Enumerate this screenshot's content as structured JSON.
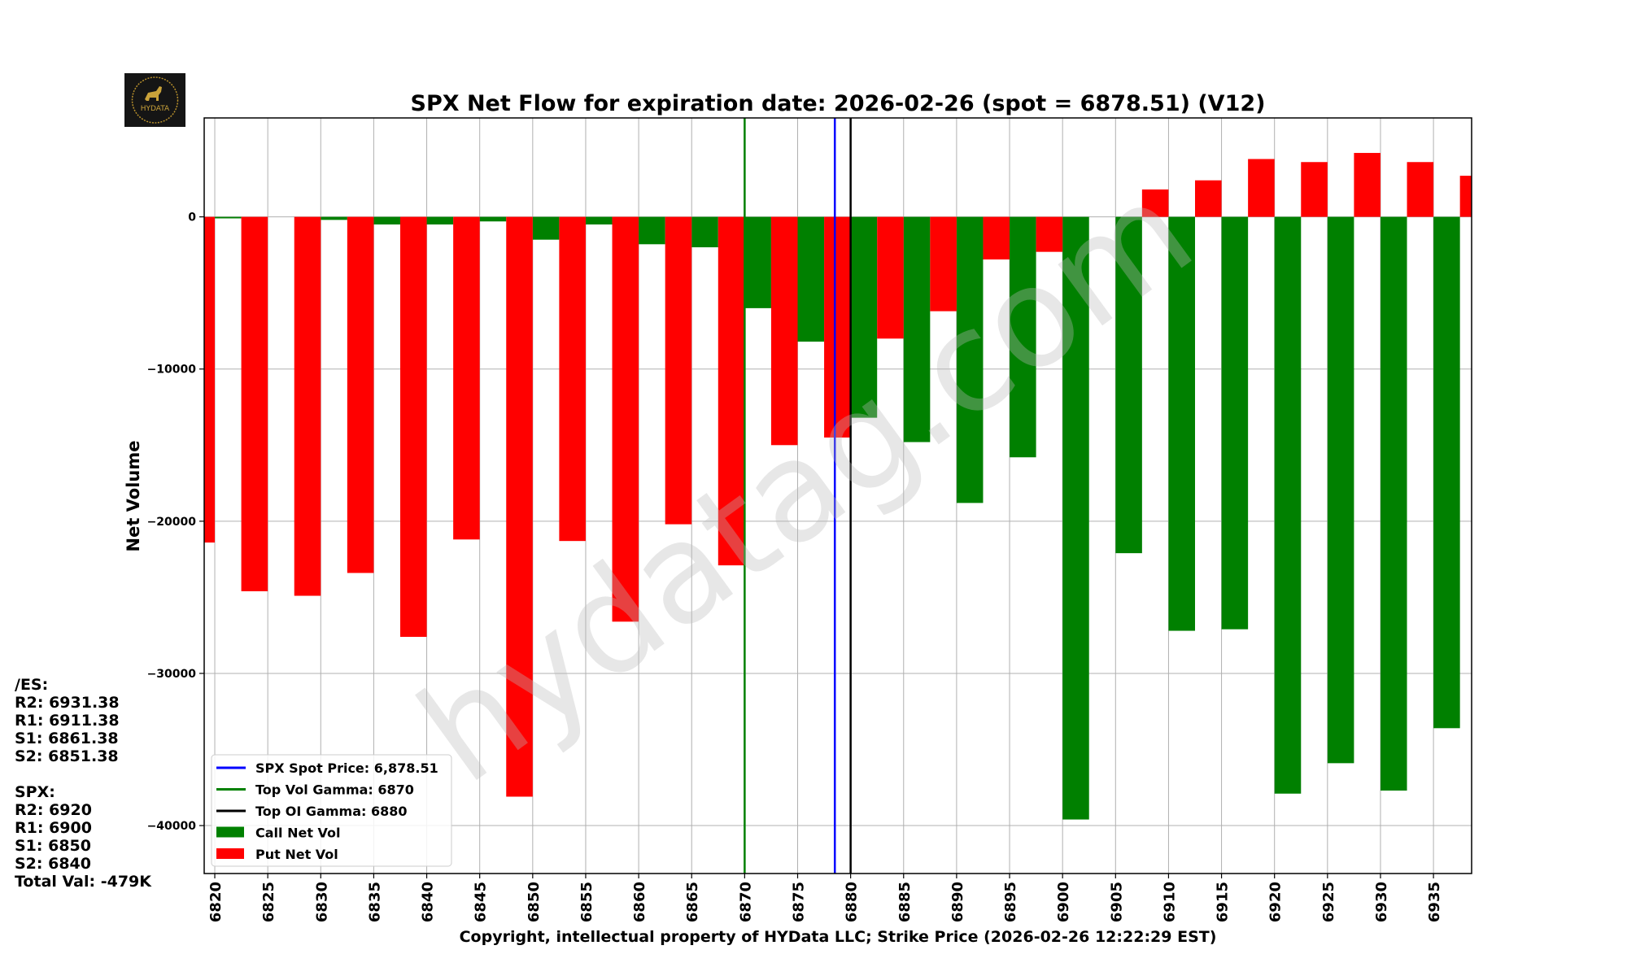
{
  "chart_data": {
    "type": "bar",
    "title": "SPX Net Flow for expiration date: 2026-02-26 (spot = 6878.51) (V12)",
    "xlabel": "Copyright, intellectual property of HYData LLC; Strike Price (2026-02-26 12:22:29 EST)",
    "ylabel": "Net Volume",
    "xlim": [
      6819,
      6938.6
    ],
    "ylim": [
      -43150,
      6500
    ],
    "grid": true,
    "legend_placement": "lower-left",
    "x_ticks": [
      6820,
      6825,
      6830,
      6835,
      6840,
      6845,
      6850,
      6855,
      6860,
      6865,
      6870,
      6875,
      6880,
      6885,
      6890,
      6895,
      6900,
      6905,
      6910,
      6915,
      6920,
      6925,
      6930,
      6935
    ],
    "y_ticks": [
      0,
      -10000,
      -20000,
      -30000,
      -40000
    ],
    "y_tick_labels": [
      "0",
      "−10000",
      "−20000",
      "−30000",
      "−40000"
    ],
    "strikes": [
      6820,
      6825,
      6830,
      6835,
      6840,
      6845,
      6850,
      6855,
      6860,
      6865,
      6870,
      6875,
      6880,
      6885,
      6890,
      6895,
      6900,
      6905,
      6910,
      6915,
      6920,
      6925,
      6930,
      6935,
      6940
    ],
    "series": [
      {
        "name": "Call Net Vol",
        "color": "#008000",
        "offset": "right",
        "values": [
          -100,
          0,
          -200,
          -500,
          -500,
          -300,
          -1500,
          -500,
          -1800,
          -2000,
          -6000,
          -8200,
          -13200,
          -14800,
          -18800,
          -15800,
          -39600,
          -22100,
          -27200,
          -27100,
          -37900,
          -35900,
          -37700,
          -33600,
          0
        ]
      },
      {
        "name": "Put Net Vol",
        "color": "#ff0000",
        "offset": "left",
        "values": [
          -21400,
          -24600,
          -24900,
          -23400,
          -27600,
          -21200,
          -38100,
          -21300,
          -26600,
          -20200,
          -22900,
          -15000,
          -14500,
          -8000,
          -6200,
          -2800,
          -2300,
          0,
          1800,
          2400,
          3800,
          3600,
          4200,
          3600,
          2700
        ]
      }
    ],
    "vlines": [
      {
        "label": "SPX Spot Price: 6,878.51",
        "x": 6878.51,
        "color": "#0000ff"
      },
      {
        "label": "Top Vol Gamma: 6870",
        "x": 6870,
        "color": "#008000"
      },
      {
        "label": "Top OI Gamma: 6880",
        "x": 6880,
        "color": "#000000"
      }
    ]
  },
  "levels": {
    "es_header": "/ES:",
    "es": [
      "R2: 6931.38",
      "R1: 6911.38",
      "S1: 6861.38",
      "S2: 6851.38"
    ],
    "spx_header": "SPX:",
    "spx": [
      "R2: 6920",
      "R1: 6900",
      "S1: 6850",
      "S2: 6840"
    ],
    "total": "Total Val: -479K"
  },
  "logo": {
    "text": "HYDATA"
  },
  "watermark": "hydatag.com"
}
